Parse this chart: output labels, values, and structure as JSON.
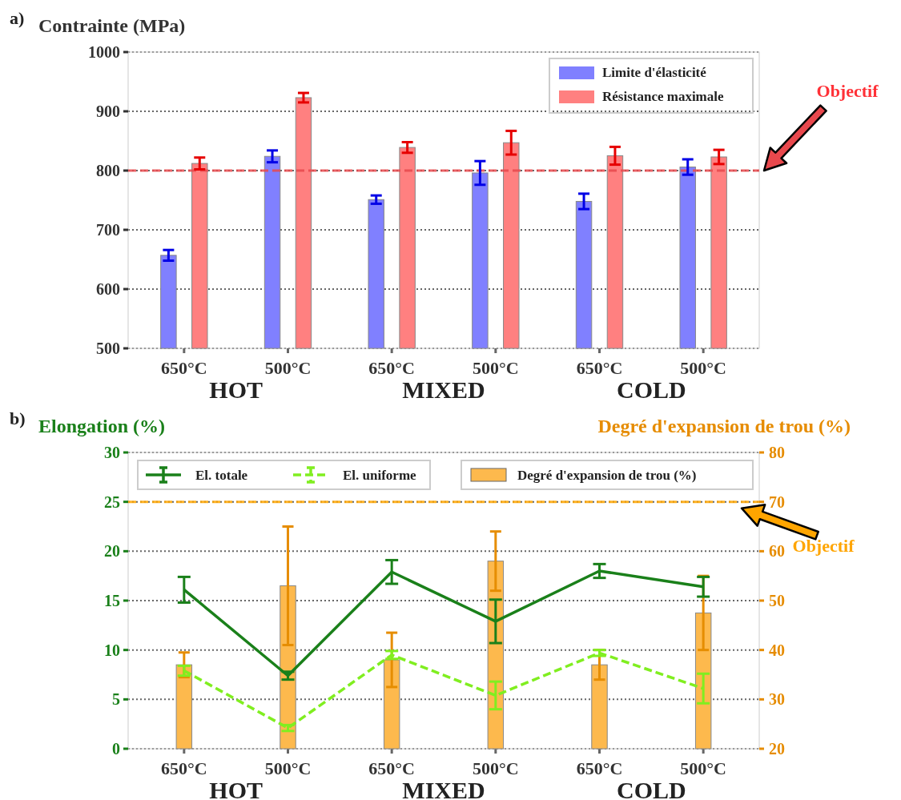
{
  "chart_data": [
    {
      "type": "bar",
      "title": "a)",
      "ylabel": "Contrainte (MPa)",
      "categories": [
        "650°C",
        "500°C",
        "650°C",
        "500°C",
        "650°C",
        "500°C"
      ],
      "ylim": [
        500,
        1000
      ],
      "yticks": [
        500,
        600,
        700,
        800,
        900,
        1000
      ],
      "grid": "y",
      "legend": "top right",
      "series": [
        {
          "name": "Limite d'élasticité",
          "color": "#8080ff",
          "values": [
            657,
            824,
            751,
            796,
            748,
            806
          ],
          "errors": [
            9,
            10,
            7,
            20,
            13,
            13
          ]
        },
        {
          "name": "Résistance maximale",
          "color": "#ff8080",
          "values": [
            812,
            923,
            839,
            847,
            825,
            823
          ],
          "errors": [
            10,
            8,
            9,
            20,
            15,
            12
          ]
        }
      ],
      "ref_lines": [
        {
          "axis": "y",
          "value": 800,
          "color": "#e8484d",
          "line_style": "dashed",
          "label": "Objectif"
        }
      ],
      "annotations": [
        "HOT",
        "MIXED",
        "COLD"
      ]
    },
    {
      "type": "line",
      "title": "b)",
      "ylabel": "Elongation (%)",
      "y2label": "Degré d'expansion de trou (%)",
      "categories": [
        "650°C",
        "500°C",
        "650°C",
        "500°C",
        "650°C",
        "500°C"
      ],
      "ylim": [
        0,
        30
      ],
      "yticks": [
        0,
        5,
        10,
        15,
        20,
        25,
        30
      ],
      "y2lim": [
        20,
        80
      ],
      "y2ticks": [
        20,
        30,
        40,
        50,
        60,
        70,
        80
      ],
      "grid": "y",
      "legend": "top",
      "series": [
        {
          "name": "Degré d'expansion de trou (%)",
          "type": "bar",
          "axis": "y2",
          "color": "#fdb94d",
          "values": [
            37,
            53,
            38,
            58,
            37,
            47.5
          ],
          "errors": [
            2.5,
            12,
            5.5,
            6,
            3,
            7.5
          ]
        },
        {
          "name": "El. totale",
          "color": "#1a801a",
          "line_style": "solid",
          "values": [
            16.1,
            7.4,
            17.9,
            12.9,
            18,
            16.4
          ],
          "errors": [
            1.3,
            0.4,
            1.2,
            2.2,
            0.7,
            1
          ]
        },
        {
          "name": "El. uniforme",
          "color": "#80ee20",
          "line_style": "dashed",
          "values": [
            7.9,
            2.1,
            9.5,
            5.4,
            9.7,
            6.1
          ],
          "errors": [
            0.5,
            0.3,
            0.4,
            1.4,
            0.3,
            1.5
          ]
        }
      ],
      "ref_lines": [
        {
          "axis": "y",
          "value": 25,
          "color": "#ffa500",
          "line_style": "dashed",
          "label": "Objectif"
        }
      ],
      "annotations": [
        "HOT",
        "MIXED",
        "COLD"
      ]
    }
  ]
}
